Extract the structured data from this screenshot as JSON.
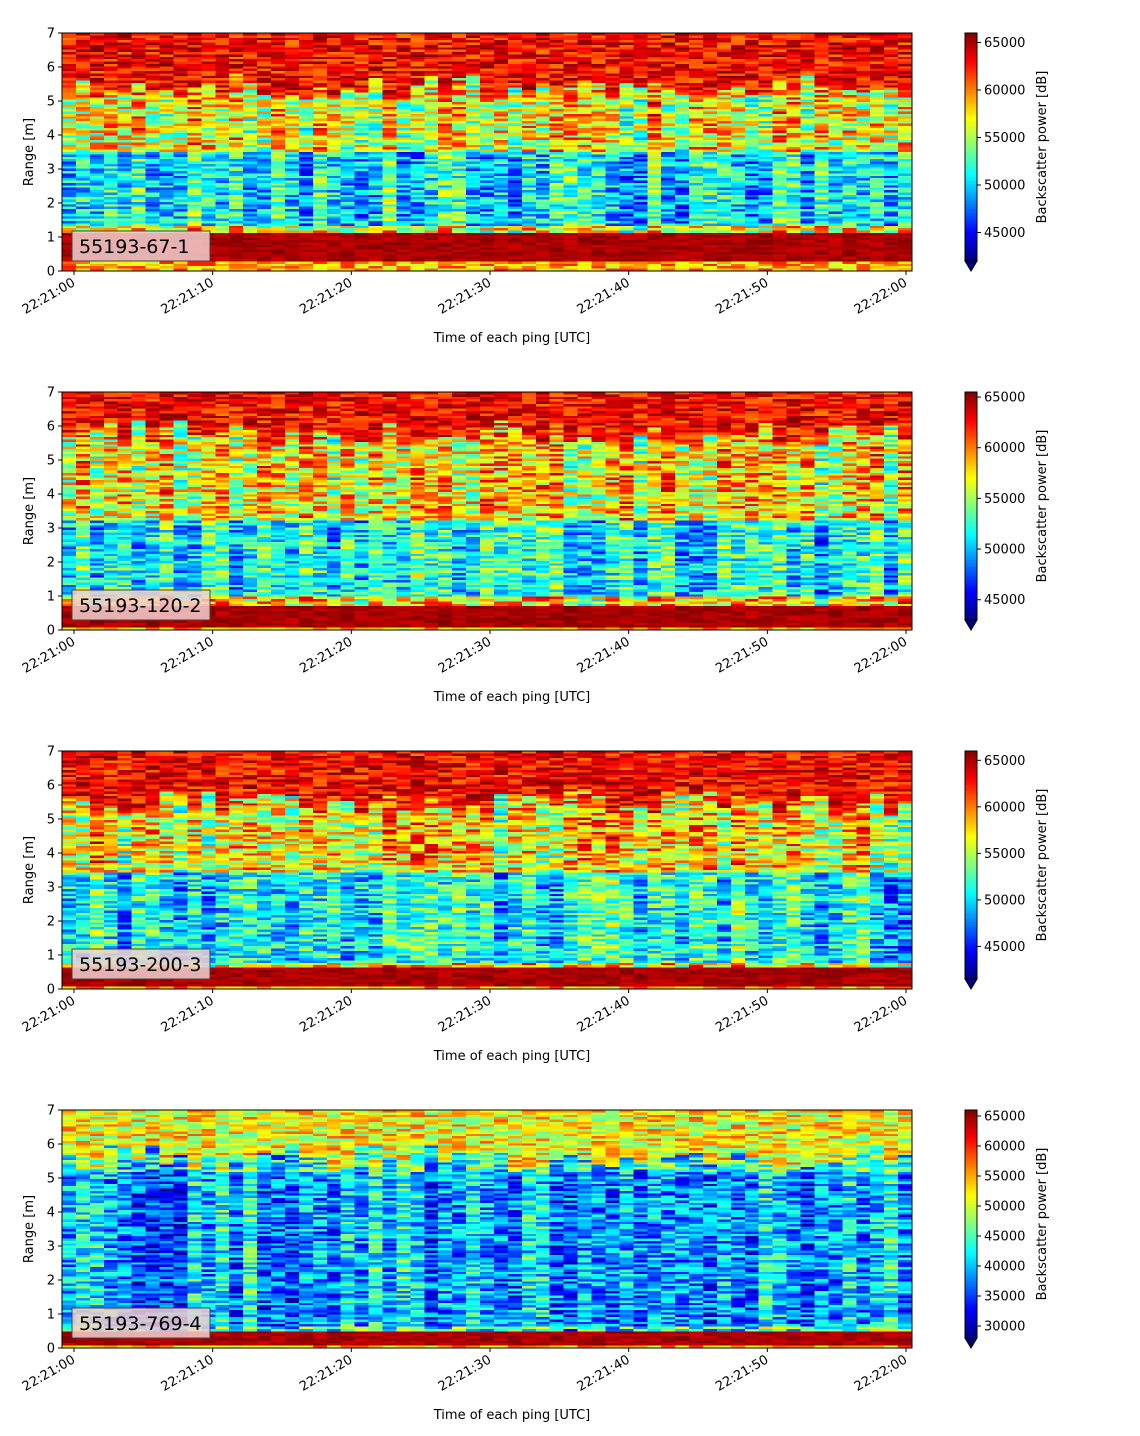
{
  "colors": {
    "colormap": "jet",
    "label_box_fill": "#f2d0d0",
    "label_box_edge": "#444444"
  },
  "chart_data": [
    {
      "type": "heatmap",
      "panel_label": "55193-67-1",
      "xlabel": "Time of each ping [UTC]",
      "ylabel": "Range [m]",
      "colorbar_label": "Backscatter power [dB]",
      "x_ticks": [
        "22:21:00",
        "22:21:10",
        "22:21:20",
        "22:21:30",
        "22:21:40",
        "22:21:50",
        "22:22:00"
      ],
      "x_range": [
        "22:20:59",
        "22:22:00"
      ],
      "y_ticks": [
        0,
        1,
        2,
        3,
        4,
        5,
        6,
        7
      ],
      "ylim": [
        0,
        7
      ],
      "colorbar_ticks": [
        45000,
        50000,
        55000,
        60000,
        65000
      ],
      "colorbar_range": [
        42000,
        66000
      ],
      "colorbar_extend": "min",
      "grid": false,
      "pattern": {
        "bottom_band": [
          0.25,
          1.1
        ],
        "top_band": [
          5.4,
          7.0
        ],
        "lower_layer": [
          1.3,
          3.5
        ],
        "upper_noise": true
      }
    },
    {
      "type": "heatmap",
      "panel_label": "55193-120-2",
      "xlabel": "Time of each ping [UTC]",
      "ylabel": "Range [m]",
      "colorbar_label": "Backscatter power [dB]",
      "x_ticks": [
        "22:21:00",
        "22:21:10",
        "22:21:20",
        "22:21:30",
        "22:21:40",
        "22:21:50",
        "22:22:00"
      ],
      "x_range": [
        "22:20:59",
        "22:22:00"
      ],
      "y_ticks": [
        0,
        1,
        2,
        3,
        4,
        5,
        6,
        7
      ],
      "ylim": [
        0,
        7
      ],
      "colorbar_ticks": [
        45000,
        50000,
        55000,
        60000,
        65000
      ],
      "colorbar_range": [
        43000,
        65500
      ],
      "colorbar_extend": "min",
      "grid": false,
      "pattern": {
        "bottom_band": [
          0.1,
          0.7
        ],
        "top_band": [
          5.8,
          7.0
        ],
        "lower_layer": [
          1.0,
          3.2
        ],
        "upper_noise": true
      }
    },
    {
      "type": "heatmap",
      "panel_label": "55193-200-3",
      "xlabel": "Time of each ping [UTC]",
      "ylabel": "Range [m]",
      "colorbar_label": "Backscatter power [dB]",
      "x_ticks": [
        "22:21:00",
        "22:21:10",
        "22:21:20",
        "22:21:30",
        "22:21:40",
        "22:21:50",
        "22:22:00"
      ],
      "x_range": [
        "22:20:59",
        "22:22:00"
      ],
      "y_ticks": [
        0,
        1,
        2,
        3,
        4,
        5,
        6,
        7
      ],
      "ylim": [
        0,
        7
      ],
      "colorbar_ticks": [
        45000,
        50000,
        55000,
        60000,
        65000
      ],
      "colorbar_range": [
        41500,
        66000
      ],
      "colorbar_extend": "min",
      "grid": false,
      "pattern": {
        "bottom_band": [
          0.1,
          0.6
        ],
        "top_band": [
          5.5,
          7.0
        ],
        "lower_layer": [
          0.8,
          3.4
        ],
        "upper_noise": true
      }
    },
    {
      "type": "heatmap",
      "panel_label": "55193-769-4",
      "xlabel": "Time of each ping [UTC]",
      "ylabel": "Range [m]",
      "colorbar_label": "Backscatter power [dB]",
      "x_ticks": [
        "22:21:00",
        "22:21:10",
        "22:21:20",
        "22:21:30",
        "22:21:40",
        "22:21:50",
        "22:22:00"
      ],
      "x_range": [
        "22:20:59",
        "22:22:00"
      ],
      "y_ticks": [
        0,
        1,
        2,
        3,
        4,
        5,
        6,
        7
      ],
      "ylim": [
        0,
        7
      ],
      "colorbar_ticks": [
        30000,
        35000,
        40000,
        45000,
        50000,
        55000,
        60000,
        65000
      ],
      "colorbar_range": [
        28000,
        66000
      ],
      "colorbar_extend": "min",
      "grid": false,
      "pattern": {
        "bottom_band": [
          0.1,
          0.5
        ],
        "top_band": [
          5.6,
          6.2
        ],
        "lower_layer": [
          0.6,
          5.2
        ],
        "upper_noise": false
      }
    }
  ]
}
